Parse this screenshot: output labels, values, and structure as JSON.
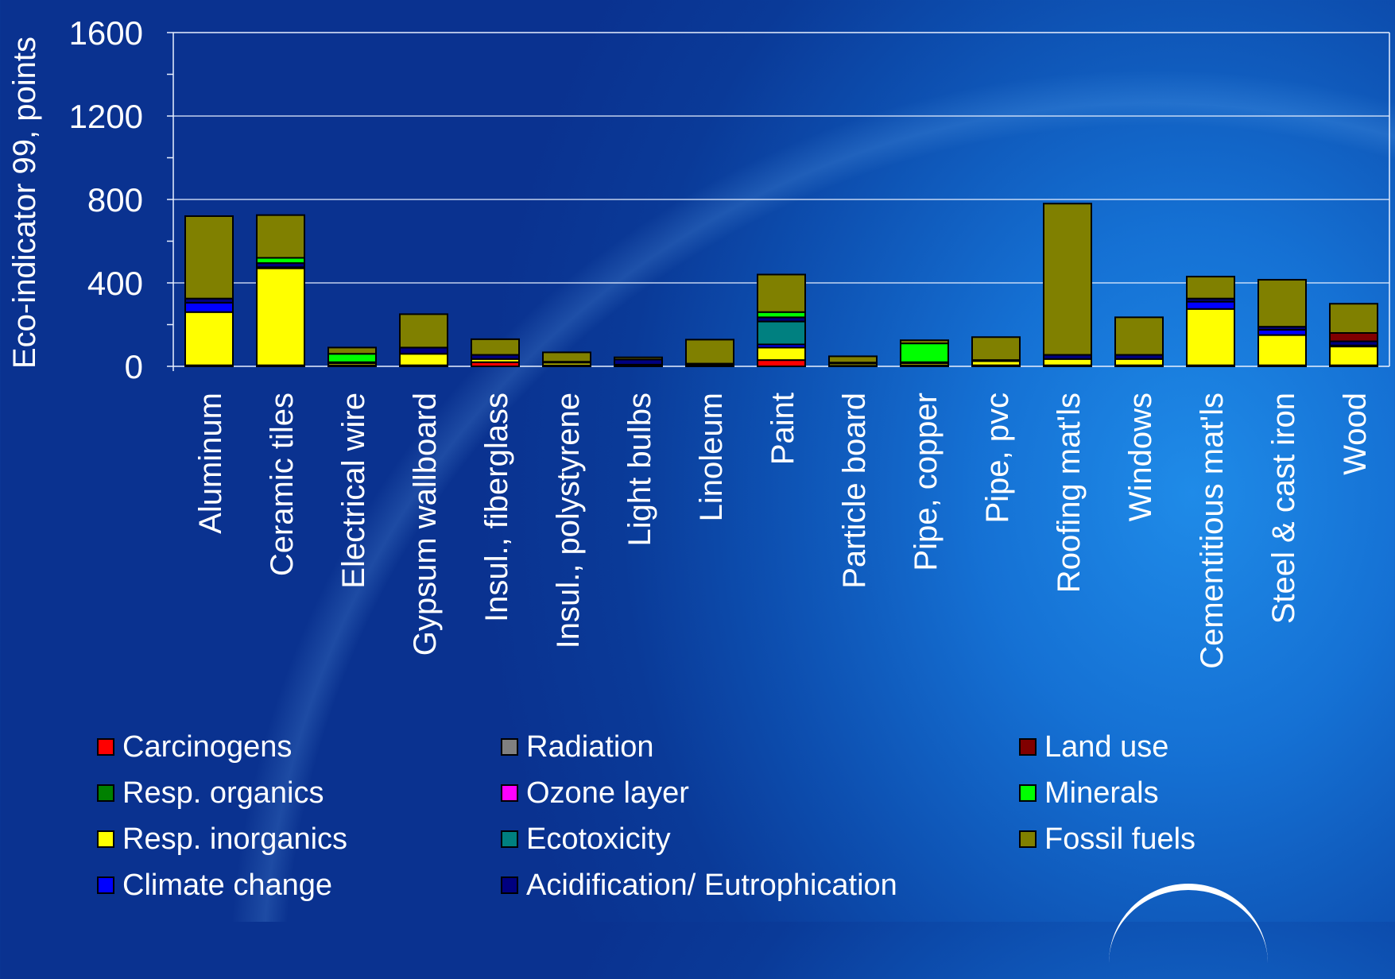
{
  "chart_data": {
    "type": "bar",
    "stacked": true,
    "ylabel": "Eco-indicator 99, points",
    "xlabel": "",
    "title": "",
    "ylim": [
      0,
      1600
    ],
    "yticks": [
      0,
      400,
      800,
      1200,
      1600
    ],
    "grid": true,
    "legend_position": "bottom",
    "categories": [
      "Aluminum",
      "Ceramic tiles",
      "Electrical wire",
      "Gypsum wallboard",
      "Insul., fiberglass",
      "Insul., polystyrene",
      "Light bulbs",
      "Linoleum",
      "Paint",
      "Particle board",
      "Pipe, copper",
      "Pipe, pvc",
      "Roofing mat'ls",
      "Windows",
      "Cementitious mat'ls",
      "Steel & cast iron",
      "Wood"
    ],
    "series": [
      {
        "name": "Carcinogens",
        "color": "#ff0000",
        "values": [
          5,
          5,
          5,
          5,
          20,
          5,
          3,
          3,
          30,
          3,
          5,
          5,
          5,
          5,
          5,
          5,
          5
        ]
      },
      {
        "name": "Resp. organics",
        "color": "#008000",
        "values": [
          0,
          0,
          0,
          0,
          0,
          0,
          0,
          0,
          0,
          0,
          0,
          0,
          0,
          0,
          0,
          0,
          0
        ]
      },
      {
        "name": "Resp. inorganics",
        "color": "#ffff00",
        "values": [
          255,
          465,
          10,
          55,
          15,
          12,
          5,
          5,
          60,
          10,
          10,
          20,
          30,
          30,
          270,
          145,
          90
        ]
      },
      {
        "name": "Climate change",
        "color": "#0000ff",
        "values": [
          45,
          5,
          0,
          0,
          0,
          0,
          0,
          0,
          15,
          0,
          0,
          0,
          0,
          0,
          35,
          25,
          5
        ]
      },
      {
        "name": "Radiation",
        "color": "#808080",
        "values": [
          0,
          0,
          0,
          0,
          0,
          0,
          0,
          0,
          0,
          0,
          0,
          0,
          0,
          0,
          0,
          0,
          0
        ]
      },
      {
        "name": "Ozone layer",
        "color": "#ff00ff",
        "values": [
          0,
          0,
          0,
          0,
          0,
          0,
          0,
          0,
          0,
          0,
          0,
          0,
          0,
          0,
          0,
          0,
          0
        ]
      },
      {
        "name": "Ecotoxicity",
        "color": "#008080",
        "values": [
          0,
          0,
          0,
          0,
          0,
          0,
          0,
          0,
          110,
          0,
          0,
          0,
          0,
          0,
          0,
          0,
          0
        ]
      },
      {
        "name": "Acidification/ Eutrophication",
        "color": "#000080",
        "values": [
          20,
          20,
          5,
          30,
          20,
          5,
          25,
          5,
          20,
          5,
          5,
          5,
          20,
          20,
          15,
          15,
          20
        ]
      },
      {
        "name": "Land use",
        "color": "#800000",
        "values": [
          0,
          0,
          0,
          0,
          0,
          0,
          0,
          0,
          0,
          0,
          0,
          0,
          0,
          0,
          0,
          0,
          40
        ]
      },
      {
        "name": "Minerals",
        "color": "#00ff00",
        "values": [
          0,
          25,
          40,
          0,
          0,
          0,
          0,
          0,
          25,
          0,
          90,
          0,
          0,
          0,
          0,
          0,
          0
        ]
      },
      {
        "name": "Fossil fuels",
        "color": "#808000",
        "values": [
          395,
          205,
          30,
          160,
          75,
          45,
          10,
          115,
          180,
          30,
          15,
          110,
          725,
          180,
          105,
          225,
          140
        ]
      }
    ]
  }
}
